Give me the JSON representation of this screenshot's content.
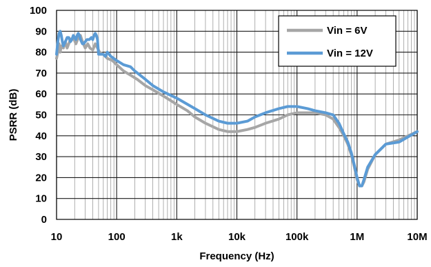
{
  "chart_data": {
    "type": "line",
    "x_scale": "log",
    "xlim": [
      10,
      10000000
    ],
    "ylim": [
      0,
      100
    ],
    "xlabel": "Frequency (Hz)",
    "ylabel": "PSRR (dB)",
    "x_ticks": [
      {
        "value": 10,
        "label": "10"
      },
      {
        "value": 100,
        "label": "100"
      },
      {
        "value": 1000,
        "label": "1k"
      },
      {
        "value": 10000,
        "label": "10k"
      },
      {
        "value": 100000,
        "label": "100k"
      },
      {
        "value": 1000000,
        "label": "1M"
      },
      {
        "value": 10000000,
        "label": "10M"
      }
    ],
    "y_ticks": [
      0,
      10,
      20,
      30,
      40,
      50,
      60,
      70,
      80,
      90,
      100
    ],
    "grid": true,
    "legend_position": "top-right",
    "series": [
      {
        "name": "Vin = 6V",
        "color": "#a6a6a6",
        "points": [
          [
            10,
            77
          ],
          [
            10.5,
            80
          ],
          [
            11,
            84
          ],
          [
            11.5,
            80
          ],
          [
            12,
            83
          ],
          [
            13,
            82
          ],
          [
            14,
            85
          ],
          [
            15,
            82
          ],
          [
            17,
            86
          ],
          [
            19,
            87
          ],
          [
            21,
            84
          ],
          [
            23,
            87
          ],
          [
            25,
            88
          ],
          [
            27,
            85
          ],
          [
            30,
            82
          ],
          [
            33,
            84
          ],
          [
            36,
            82
          ],
          [
            40,
            81
          ],
          [
            44,
            84
          ],
          [
            48,
            82
          ],
          [
            52,
            80
          ],
          [
            60,
            79
          ],
          [
            70,
            77
          ],
          [
            85,
            76
          ],
          [
            100,
            74
          ],
          [
            130,
            71
          ],
          [
            170,
            69
          ],
          [
            220,
            67
          ],
          [
            300,
            64
          ],
          [
            400,
            62
          ],
          [
            600,
            59
          ],
          [
            1000,
            55
          ],
          [
            1500,
            52
          ],
          [
            2000,
            49
          ],
          [
            3000,
            46
          ],
          [
            5000,
            43
          ],
          [
            7000,
            42
          ],
          [
            10000,
            42
          ],
          [
            15000,
            43
          ],
          [
            20000,
            44
          ],
          [
            30000,
            46
          ],
          [
            50000,
            48
          ],
          [
            70000,
            50
          ],
          [
            100000,
            51
          ],
          [
            150000,
            51
          ],
          [
            200000,
            51
          ],
          [
            300000,
            50
          ],
          [
            400000,
            48
          ],
          [
            500000,
            44
          ],
          [
            600000,
            40
          ],
          [
            700000,
            36
          ],
          [
            800000,
            31
          ],
          [
            900000,
            25
          ],
          [
            1000000,
            19
          ],
          [
            1100000,
            16
          ],
          [
            1200000,
            16
          ],
          [
            1300000,
            18
          ],
          [
            1500000,
            24
          ],
          [
            2000000,
            31
          ],
          [
            3000000,
            36
          ],
          [
            5000000,
            38
          ],
          [
            10000000,
            42
          ]
        ]
      },
      {
        "name": "Vin = 12V",
        "color": "#5b9bd5",
        "points": [
          [
            10,
            79
          ],
          [
            10.5,
            85
          ],
          [
            11,
            89
          ],
          [
            11.5,
            90
          ],
          [
            12,
            88
          ],
          [
            12.5,
            85
          ],
          [
            13,
            83
          ],
          [
            14,
            85
          ],
          [
            15,
            87
          ],
          [
            16,
            87
          ],
          [
            17,
            85
          ],
          [
            18,
            86
          ],
          [
            19,
            88
          ],
          [
            20,
            87
          ],
          [
            21,
            86
          ],
          [
            22,
            88
          ],
          [
            23,
            89
          ],
          [
            24,
            88
          ],
          [
            25,
            86
          ],
          [
            26,
            85
          ],
          [
            27,
            84
          ],
          [
            28,
            84
          ],
          [
            30,
            85
          ],
          [
            32,
            86
          ],
          [
            35,
            86
          ],
          [
            38,
            87
          ],
          [
            40,
            86
          ],
          [
            42,
            88
          ],
          [
            44,
            89
          ],
          [
            46,
            88
          ],
          [
            48,
            86
          ],
          [
            50,
            79
          ],
          [
            55,
            79
          ],
          [
            60,
            79
          ],
          [
            65,
            78
          ],
          [
            70,
            80
          ],
          [
            80,
            78
          ],
          [
            100,
            76
          ],
          [
            130,
            74
          ],
          [
            170,
            73
          ],
          [
            200,
            71
          ],
          [
            300,
            67
          ],
          [
            400,
            64
          ],
          [
            600,
            61
          ],
          [
            1000,
            58
          ],
          [
            2000,
            53
          ],
          [
            3000,
            50
          ],
          [
            5000,
            47
          ],
          [
            7000,
            46
          ],
          [
            10000,
            46
          ],
          [
            15000,
            47
          ],
          [
            20000,
            49
          ],
          [
            30000,
            51
          ],
          [
            50000,
            53
          ],
          [
            70000,
            54
          ],
          [
            100000,
            54
          ],
          [
            150000,
            53
          ],
          [
            200000,
            52
          ],
          [
            300000,
            51
          ],
          [
            400000,
            50
          ],
          [
            500000,
            46
          ],
          [
            600000,
            41
          ],
          [
            700000,
            37
          ],
          [
            800000,
            32
          ],
          [
            900000,
            26
          ],
          [
            1000000,
            20
          ],
          [
            1100000,
            16
          ],
          [
            1200000,
            16
          ],
          [
            1300000,
            19
          ],
          [
            1500000,
            25
          ],
          [
            2000000,
            31
          ],
          [
            3000000,
            36
          ],
          [
            5000000,
            37
          ],
          [
            10000000,
            42
          ]
        ]
      }
    ]
  }
}
